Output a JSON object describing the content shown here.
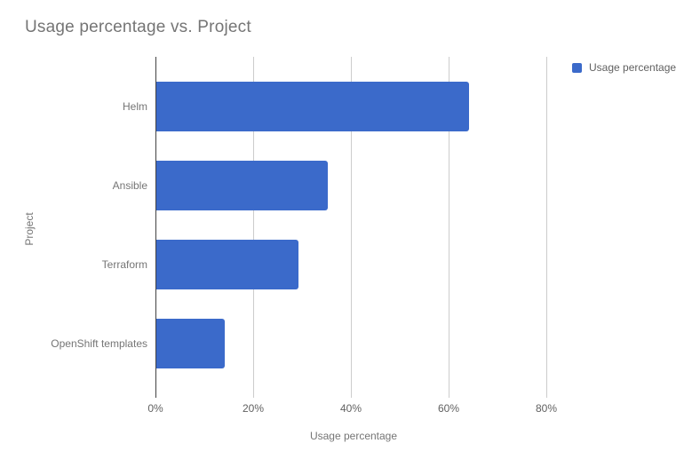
{
  "title": "Usage percentage vs. Project",
  "legend": {
    "label": "Usage percentage"
  },
  "x_axis": {
    "title": "Usage percentage",
    "tick_labels": [
      "0%",
      "20%",
      "40%",
      "60%",
      "80%"
    ]
  },
  "y_axis": {
    "title": "Project"
  },
  "colors": {
    "bar": "#3b6aca",
    "grid": "#cccccc",
    "axis_line": "#424242",
    "title_text": "#757575",
    "tick_text": "#616161"
  },
  "chart_data": {
    "type": "bar",
    "orientation": "horizontal",
    "title": "Usage percentage vs. Project",
    "categories": [
      "Helm",
      "Ansible",
      "Terraform",
      "OpenShift templates"
    ],
    "values": [
      64,
      35,
      29,
      14
    ],
    "series": [
      {
        "name": "Usage percentage",
        "values": [
          64,
          35,
          29,
          14
        ]
      }
    ],
    "xlabel": "Usage percentage",
    "ylabel": "Project",
    "xlim": [
      0,
      80
    ],
    "x_ticks": [
      0,
      20,
      40,
      60,
      80
    ],
    "x_tick_labels": [
      "0%",
      "20%",
      "40%",
      "60%",
      "80%"
    ],
    "grid": true,
    "legend_position": "top-right",
    "bar_color": "#3b6aca"
  }
}
